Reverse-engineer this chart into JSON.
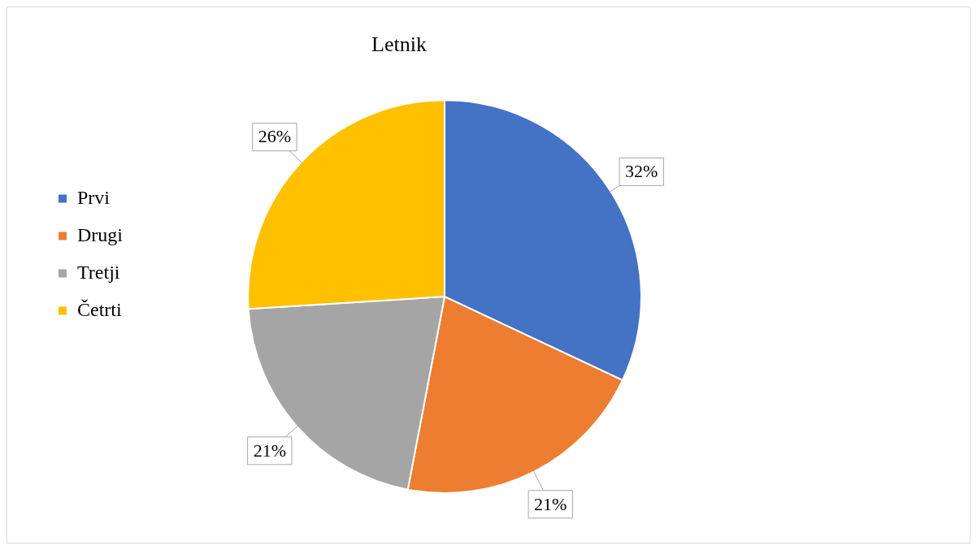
{
  "chart_data": {
    "type": "pie",
    "title": "Letnik",
    "categories": [
      "Prvi",
      "Drugi",
      "Tretji",
      "Četrti"
    ],
    "values": [
      32,
      21,
      21,
      26
    ],
    "colors": [
      "#4472c4",
      "#ed7d31",
      "#a5a5a5",
      "#ffc000"
    ],
    "legend": "left",
    "value_labels": [
      "32%",
      "21%",
      "21%",
      "26%"
    ]
  }
}
